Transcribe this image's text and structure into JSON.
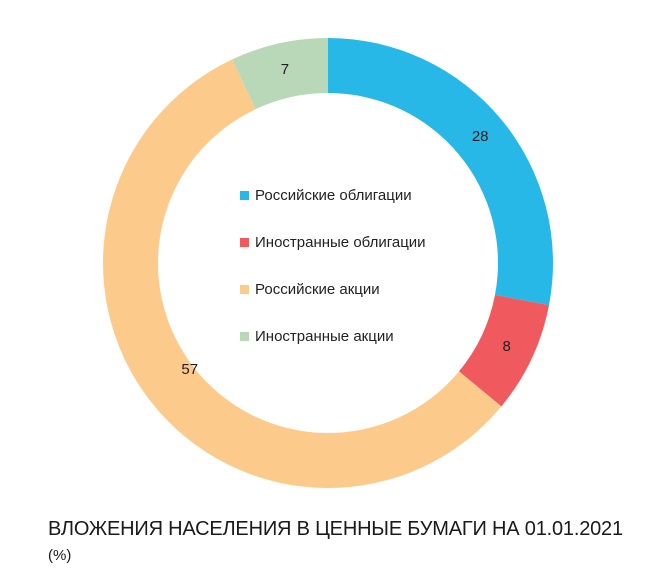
{
  "chart_data": {
    "type": "pie",
    "donut": true,
    "title": "ВЛОЖЕНИЯ НАСЕЛЕНИЯ В ЦЕННЫЕ БУМАГИ НА 01.01.2021",
    "subtitle": "(%)",
    "categories": [
      "Российские облигации",
      "Иностранные облигации",
      "Российские акции",
      "Иностранные акции"
    ],
    "values": [
      28,
      8,
      57,
      7
    ],
    "colors": [
      "#27B8E8",
      "#F05A5E",
      "#FCCB8B",
      "#B9D8B7"
    ],
    "legend_position": "center"
  }
}
